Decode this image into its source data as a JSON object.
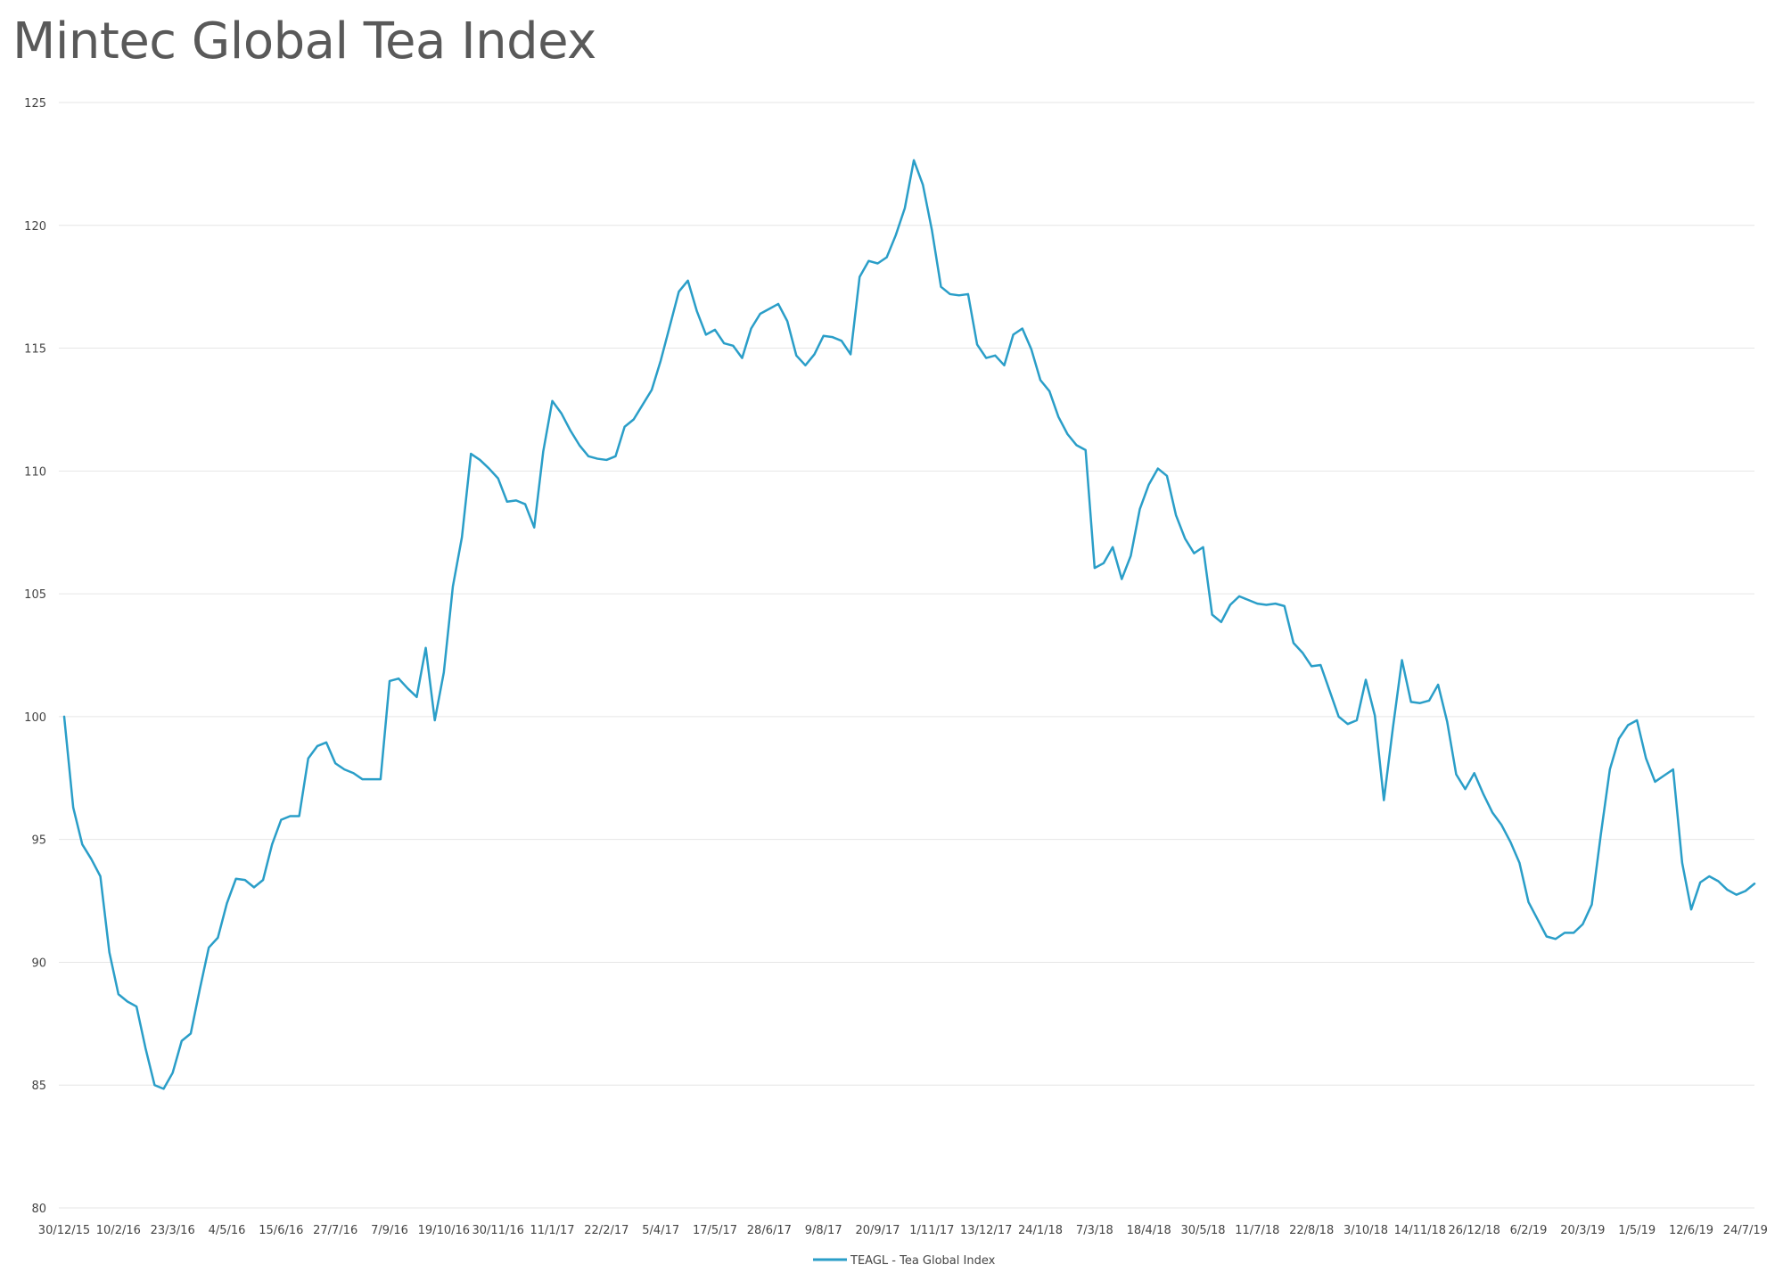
{
  "chart_data": {
    "type": "line",
    "title": "Mintec Global Tea Index",
    "xlabel": "",
    "ylabel": "",
    "ylim": [
      80,
      125
    ],
    "yticks": [
      80,
      85,
      90,
      95,
      100,
      105,
      110,
      115,
      120,
      125
    ],
    "xtick_labels": [
      "30/12/15",
      "10/2/16",
      "23/3/16",
      "4/5/16",
      "15/6/16",
      "27/7/16",
      "7/9/16",
      "19/10/16",
      "30/11/16",
      "11/1/17",
      "22/2/17",
      "5/4/17",
      "17/5/17",
      "28/6/17",
      "9/8/17",
      "20/9/17",
      "1/11/17",
      "13/12/17",
      "24/1/18",
      "7/3/18",
      "18/4/18",
      "30/5/18",
      "11/7/18",
      "22/8/18",
      "3/10/18",
      "14/11/18",
      "26/12/18",
      "6/2/19",
      "20/3/19",
      "1/5/19",
      "12/6/19",
      "24/7/19"
    ],
    "x_first": "30/12/15",
    "x_step_days": 7,
    "grid": true,
    "legend_position": "bottom-center",
    "colors": {
      "line": "#2a9ec8",
      "grid": "#e6e6e6",
      "text": "#444444",
      "title": "#595959"
    },
    "series": [
      {
        "name": "TEAGL - Tea Global Index",
        "values": [
          100.0,
          96.3,
          94.8,
          94.2,
          93.5,
          90.4,
          88.7,
          88.4,
          88.2,
          86.5,
          85.0,
          84.85,
          85.5,
          86.8,
          87.1,
          88.9,
          90.6,
          91.0,
          92.4,
          93.4,
          93.35,
          93.05,
          93.35,
          94.8,
          95.8,
          95.95,
          95.95,
          98.3,
          98.8,
          98.95,
          98.1,
          97.85,
          97.7,
          97.45,
          97.45,
          97.45,
          101.45,
          101.55,
          101.15,
          100.8,
          102.8,
          99.85,
          101.8,
          105.3,
          107.3,
          110.7,
          110.45,
          110.1,
          109.7,
          108.75,
          108.8,
          108.65,
          107.7,
          110.8,
          112.85,
          112.35,
          111.65,
          111.05,
          110.6,
          110.5,
          110.45,
          110.6,
          111.8,
          112.1,
          112.7,
          113.3,
          114.5,
          115.9,
          117.3,
          117.75,
          116.5,
          115.55,
          115.75,
          115.2,
          115.1,
          114.6,
          115.8,
          116.4,
          116.6,
          116.8,
          116.1,
          114.7,
          114.3,
          114.75,
          115.5,
          115.45,
          115.3,
          114.75,
          117.9,
          118.55,
          118.45,
          118.7,
          119.6,
          120.7,
          122.65,
          121.65,
          119.8,
          117.5,
          117.2,
          117.15,
          117.2,
          115.15,
          114.6,
          114.7,
          114.3,
          115.55,
          115.8,
          114.95,
          113.7,
          113.25,
          112.2,
          111.5,
          111.05,
          110.85,
          106.05,
          106.25,
          106.9,
          105.6,
          106.55,
          108.45,
          109.45,
          110.1,
          109.8,
          108.2,
          107.25,
          106.65,
          106.9,
          104.15,
          103.85,
          104.55,
          104.9,
          104.75,
          104.6,
          104.55,
          104.6,
          104.5,
          103.0,
          102.6,
          102.05,
          102.1,
          101.05,
          100.0,
          99.7,
          99.85,
          101.5,
          100.05,
          96.6,
          99.55,
          102.3,
          100.6,
          100.55,
          100.65,
          101.3,
          99.8,
          97.65,
          97.05,
          97.7,
          96.85,
          96.1,
          95.6,
          94.9,
          94.05,
          92.45,
          91.75,
          91.05,
          90.95,
          91.2,
          91.2,
          91.55,
          92.35,
          95.2,
          97.85,
          99.1,
          99.65,
          99.85,
          98.3,
          97.35,
          97.6,
          97.85,
          94.05,
          92.15,
          93.25,
          93.5,
          93.3,
          92.95,
          92.75,
          92.9,
          93.2
        ]
      }
    ]
  }
}
